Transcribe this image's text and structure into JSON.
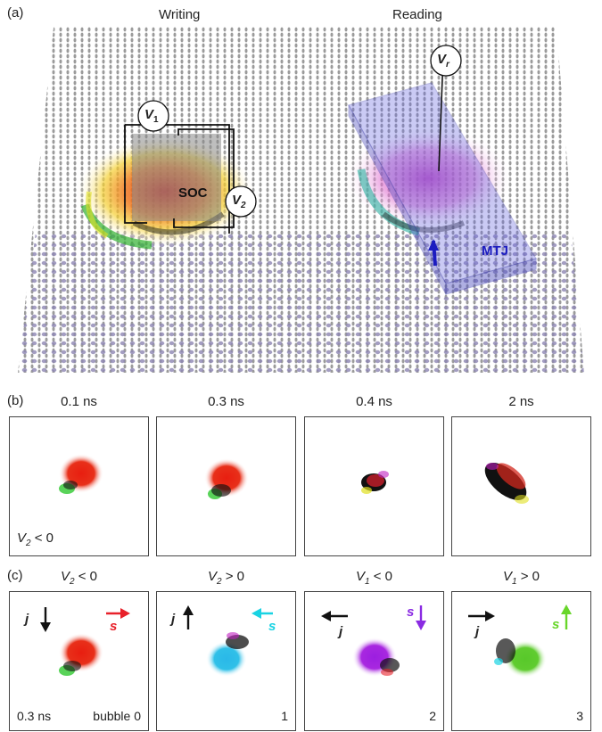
{
  "panel_a": {
    "label": "(a)",
    "writing_title": "Writing",
    "reading_title": "Reading",
    "v1_label": "V",
    "v1_sub": "1",
    "v2_label": "V",
    "v2_sub": "2",
    "vr_label": "V",
    "vr_sub": "r",
    "soc_label": "SOC",
    "mtj_label": "MTJ"
  },
  "panel_b": {
    "label": "(b)",
    "times": [
      "0.1 ns",
      "0.3 ns",
      "0.4 ns",
      "2 ns"
    ],
    "note": "V",
    "note_sub": "2",
    "note_rest": " < 0"
  },
  "panel_c": {
    "label": "(c)",
    "titles": [
      {
        "v": "V",
        "sub": "2",
        "rest": " < 0"
      },
      {
        "v": "V",
        "sub": "2",
        "rest": " > 0"
      },
      {
        "v": "V",
        "sub": "1",
        "rest": " < 0"
      },
      {
        "v": "V",
        "sub": "1",
        "rest": " > 0"
      }
    ],
    "j_label": "j",
    "s_label": "s",
    "time_note": "0.3 ns",
    "bubble_labels": [
      "bubble 0",
      "1",
      "2",
      "3"
    ],
    "s_colors": [
      "#e8212a",
      "#19d3e3",
      "#8a2be2",
      "#68d62a"
    ]
  }
}
